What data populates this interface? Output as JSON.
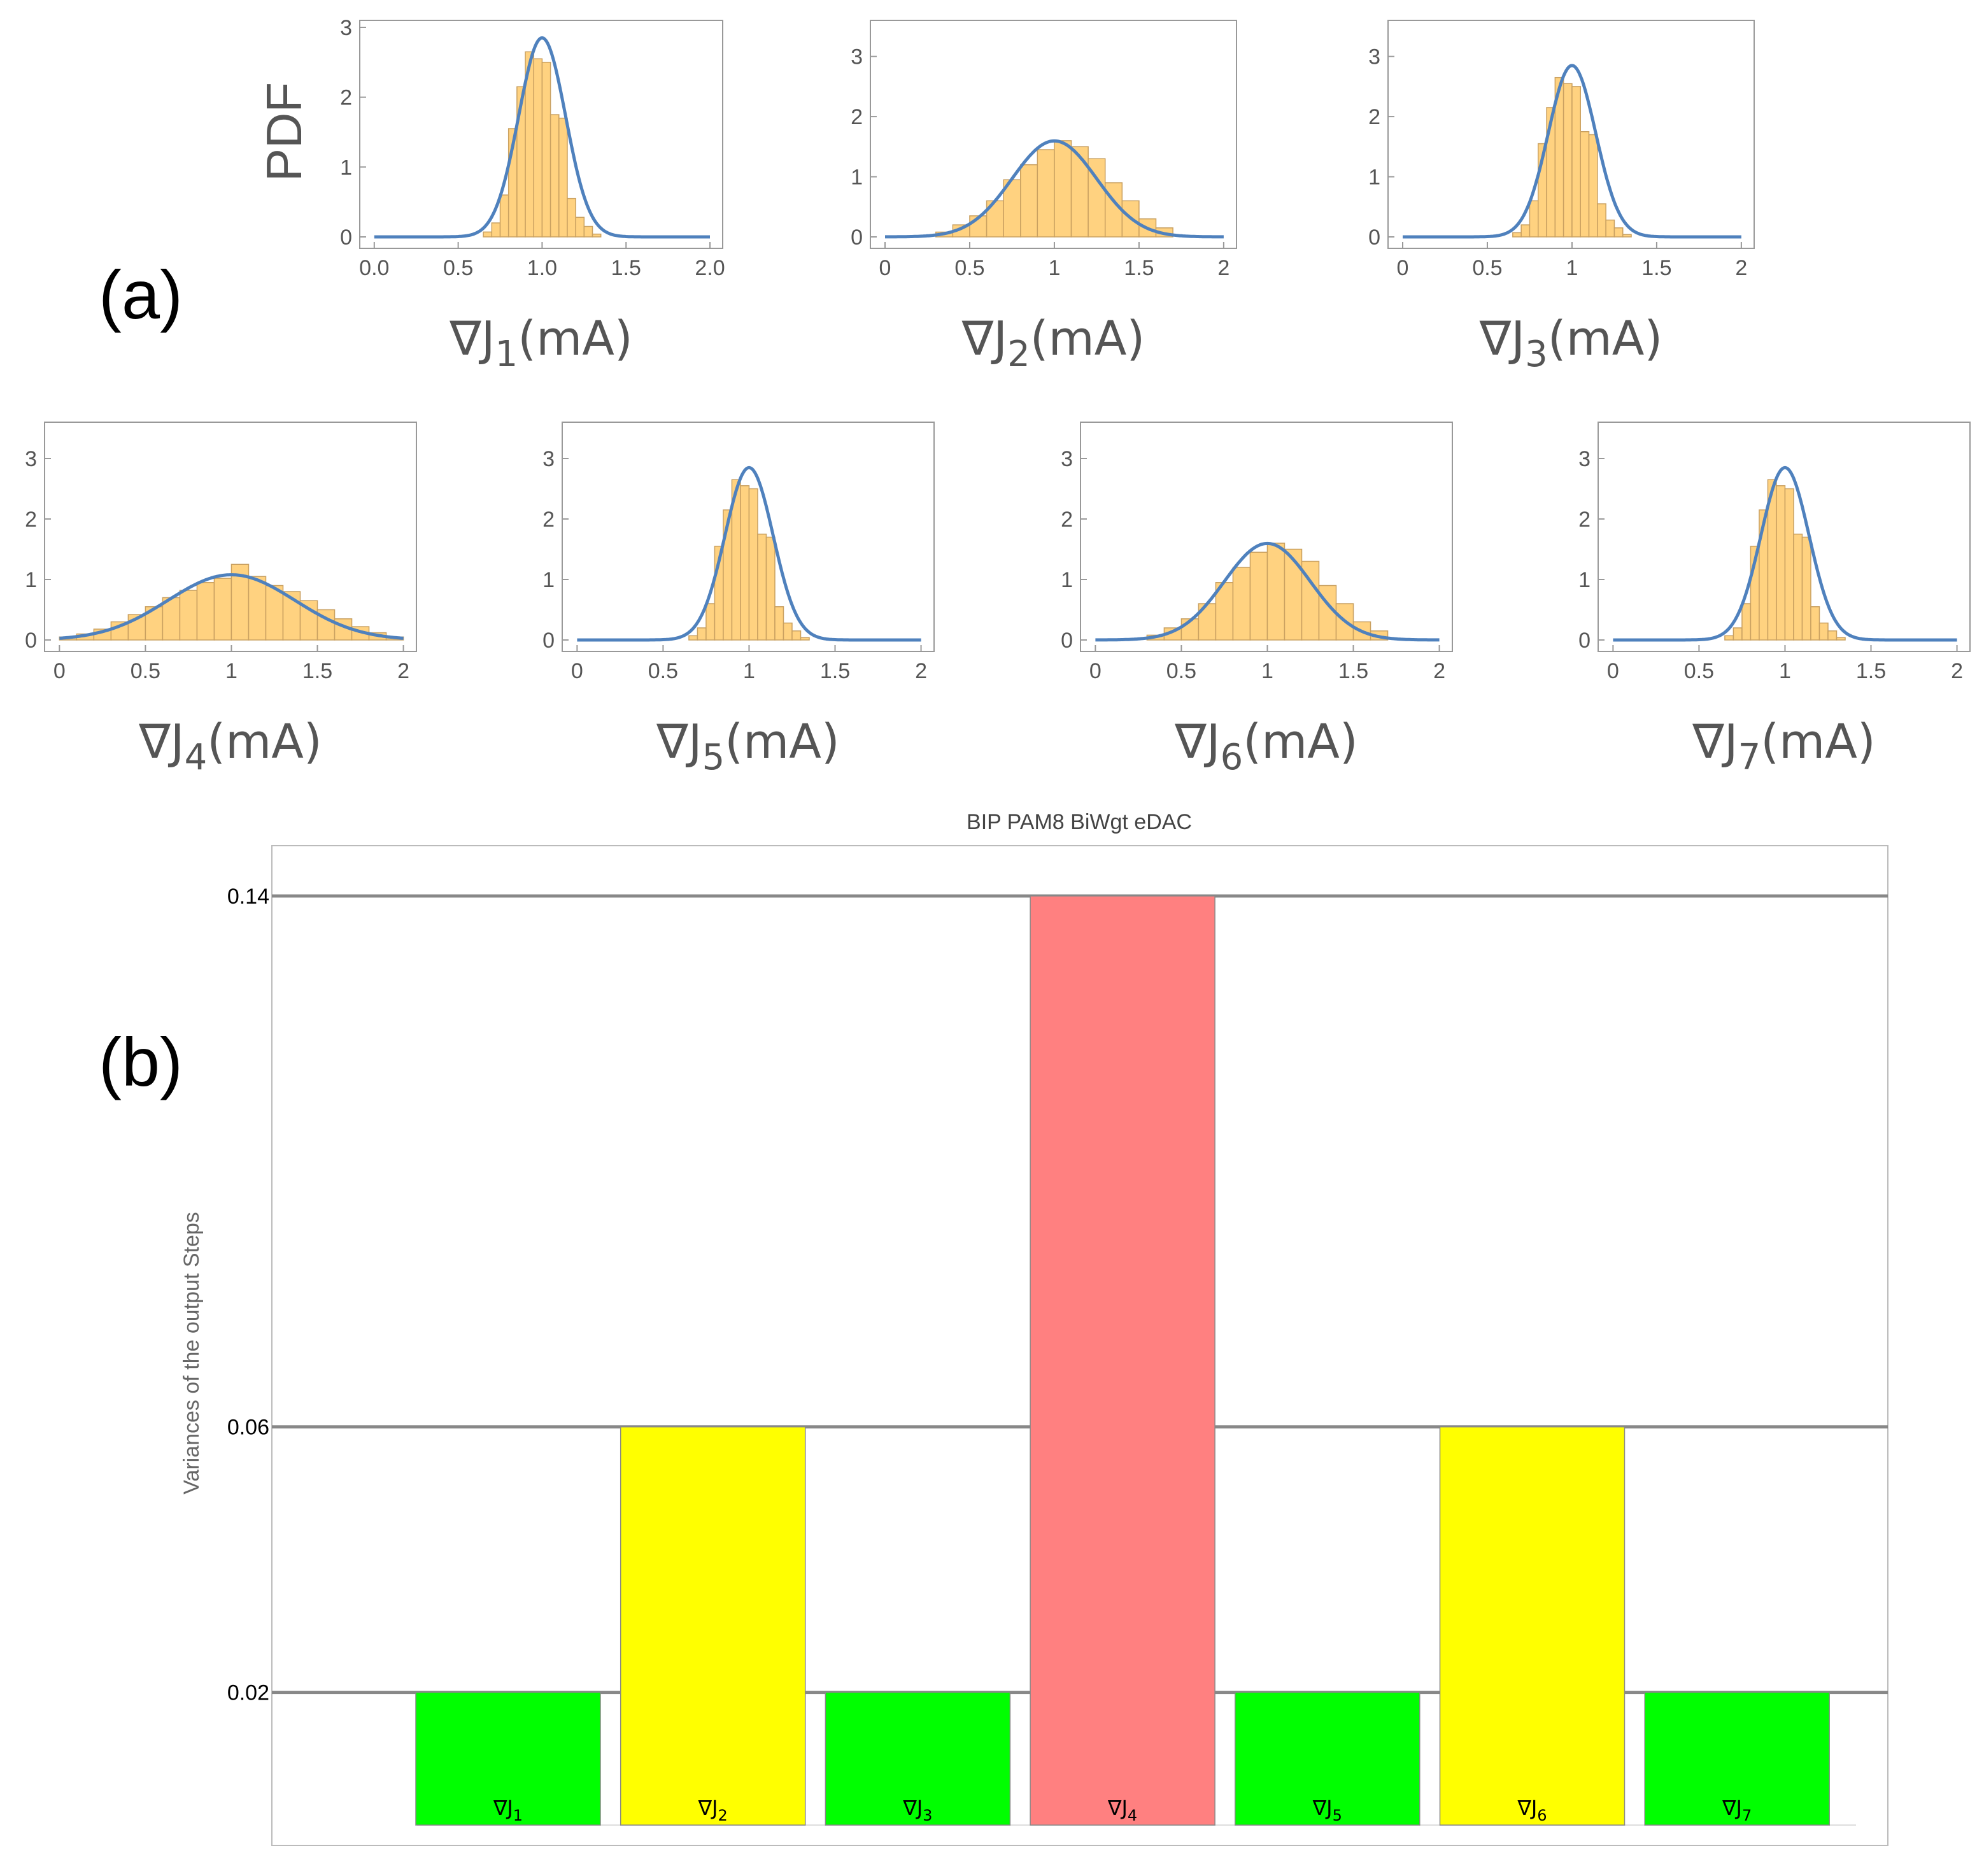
{
  "panels": {
    "a_label": "(a)",
    "b_label": "(b)"
  },
  "chart_data": [
    {
      "type": "histogram",
      "id": "J1",
      "xlabel": "∇J",
      "xsub": "1",
      "xunit": "(mA)",
      "ylabel": "PDF",
      "xlim": [
        0,
        2
      ],
      "ylim": [
        0,
        3.1
      ],
      "xticks": [
        "0.0",
        "0.5",
        "1.0",
        "1.5",
        "2.0"
      ],
      "yticks": [
        "0",
        "1",
        "2",
        "3"
      ],
      "mean": 1.0,
      "sd": 0.14,
      "bin_edges": [
        0.65,
        0.7,
        0.75,
        0.8,
        0.85,
        0.9,
        0.95,
        1.0,
        1.05,
        1.1,
        1.15,
        1.2,
        1.25,
        1.3,
        1.35
      ],
      "bin_values": [
        0.07,
        0.2,
        0.6,
        1.55,
        2.15,
        2.65,
        2.55,
        2.5,
        1.75,
        1.7,
        0.55,
        0.28,
        0.15,
        0.04
      ]
    },
    {
      "type": "histogram",
      "id": "J2",
      "xlabel": "∇J",
      "xsub": "2",
      "xunit": "(mA)",
      "xlim": [
        0,
        2
      ],
      "ylim": [
        0,
        3.6
      ],
      "xticks": [
        "0",
        "0.5",
        "1",
        "1.5",
        "2"
      ],
      "yticks": [
        "0",
        "1",
        "2",
        "3"
      ],
      "mean": 1.0,
      "sd": 0.25,
      "bin_edges": [
        0.3,
        0.4,
        0.5,
        0.6,
        0.7,
        0.8,
        0.9,
        1.0,
        1.1,
        1.2,
        1.3,
        1.4,
        1.5,
        1.6,
        1.7
      ],
      "bin_values": [
        0.08,
        0.2,
        0.35,
        0.6,
        0.95,
        1.2,
        1.45,
        1.6,
        1.5,
        1.3,
        0.9,
        0.6,
        0.3,
        0.15
      ]
    },
    {
      "type": "histogram",
      "id": "J3",
      "xlabel": "∇J",
      "xsub": "3",
      "xunit": "(mA)",
      "xlim": [
        0,
        2
      ],
      "ylim": [
        0,
        3.6
      ],
      "xticks": [
        "0",
        "0.5",
        "1",
        "1.5",
        "2"
      ],
      "yticks": [
        "0",
        "1",
        "2",
        "3"
      ],
      "mean": 1.0,
      "sd": 0.14,
      "bin_edges": [
        0.65,
        0.7,
        0.75,
        0.8,
        0.85,
        0.9,
        0.95,
        1.0,
        1.05,
        1.1,
        1.15,
        1.2,
        1.25,
        1.3,
        1.35
      ],
      "bin_values": [
        0.07,
        0.2,
        0.6,
        1.55,
        2.15,
        2.65,
        2.55,
        2.5,
        1.75,
        1.7,
        0.55,
        0.28,
        0.15,
        0.04
      ]
    },
    {
      "type": "histogram",
      "id": "J4",
      "xlabel": "∇J",
      "xsub": "4",
      "xunit": "(mA)",
      "xlim": [
        0,
        2
      ],
      "ylim": [
        0,
        3.6
      ],
      "xticks": [
        "0",
        "0.5",
        "1",
        "1.5",
        "2"
      ],
      "yticks": [
        "0",
        "1",
        "2",
        "3"
      ],
      "mean": 1.0,
      "sd": 0.37,
      "bin_edges": [
        0.0,
        0.1,
        0.2,
        0.3,
        0.4,
        0.5,
        0.6,
        0.7,
        0.8,
        0.9,
        1.0,
        1.1,
        1.2,
        1.3,
        1.4,
        1.5,
        1.6,
        1.7,
        1.8,
        1.9,
        2.0
      ],
      "bin_values": [
        0.05,
        0.1,
        0.18,
        0.3,
        0.42,
        0.55,
        0.7,
        0.82,
        0.95,
        1.02,
        1.25,
        1.05,
        0.9,
        0.8,
        0.65,
        0.5,
        0.35,
        0.22,
        0.12,
        0.05
      ]
    },
    {
      "type": "histogram",
      "id": "J5",
      "xlabel": "∇J",
      "xsub": "5",
      "xunit": "(mA)",
      "xlim": [
        0,
        2
      ],
      "ylim": [
        0,
        3.6
      ],
      "xticks": [
        "0",
        "0.5",
        "1",
        "1.5",
        "2"
      ],
      "yticks": [
        "0",
        "1",
        "2",
        "3"
      ],
      "mean": 1.0,
      "sd": 0.14,
      "bin_edges": [
        0.65,
        0.7,
        0.75,
        0.8,
        0.85,
        0.9,
        0.95,
        1.0,
        1.05,
        1.1,
        1.15,
        1.2,
        1.25,
        1.3,
        1.35
      ],
      "bin_values": [
        0.07,
        0.2,
        0.6,
        1.55,
        2.15,
        2.65,
        2.55,
        2.5,
        1.75,
        1.7,
        0.55,
        0.28,
        0.15,
        0.04
      ]
    },
    {
      "type": "histogram",
      "id": "J6",
      "xlabel": "∇J",
      "xsub": "6",
      "xunit": "(mA)",
      "xlim": [
        0,
        2
      ],
      "ylim": [
        0,
        3.6
      ],
      "xticks": [
        "0",
        "0.5",
        "1",
        "1.5",
        "2"
      ],
      "yticks": [
        "0",
        "1",
        "2",
        "3"
      ],
      "mean": 1.0,
      "sd": 0.25,
      "bin_edges": [
        0.3,
        0.4,
        0.5,
        0.6,
        0.7,
        0.8,
        0.9,
        1.0,
        1.1,
        1.2,
        1.3,
        1.4,
        1.5,
        1.6,
        1.7
      ],
      "bin_values": [
        0.08,
        0.2,
        0.35,
        0.6,
        0.95,
        1.2,
        1.45,
        1.6,
        1.5,
        1.3,
        0.9,
        0.6,
        0.3,
        0.15
      ]
    },
    {
      "type": "histogram",
      "id": "J7",
      "xlabel": "∇J",
      "xsub": "7",
      "xunit": "(mA)",
      "xlim": [
        0,
        2
      ],
      "ylim": [
        0,
        3.6
      ],
      "xticks": [
        "0",
        "0.5",
        "1",
        "1.5",
        "2"
      ],
      "yticks": [
        "0",
        "1",
        "2",
        "3"
      ],
      "mean": 1.0,
      "sd": 0.14,
      "bin_edges": [
        0.65,
        0.7,
        0.75,
        0.8,
        0.85,
        0.9,
        0.95,
        1.0,
        1.05,
        1.1,
        1.15,
        1.2,
        1.25,
        1.3,
        1.35
      ],
      "bin_values": [
        0.07,
        0.2,
        0.6,
        1.55,
        2.15,
        2.65,
        2.55,
        2.5,
        1.75,
        1.7,
        0.55,
        0.28,
        0.15,
        0.04
      ]
    },
    {
      "type": "bar",
      "id": "variances",
      "title": "BIP PAM8 BiWgt eDAC",
      "ylabel": "Variances of the output Steps",
      "categories": [
        "∇J1",
        "∇J2",
        "∇J3",
        "∇J4",
        "∇J5",
        "∇J6",
        "∇J7"
      ],
      "category_base": "∇J",
      "category_subs": [
        "1",
        "2",
        "3",
        "4",
        "5",
        "6",
        "7"
      ],
      "values": [
        0.02,
        0.06,
        0.02,
        0.14,
        0.02,
        0.06,
        0.02
      ],
      "colors": [
        "#00ff00",
        "#ffff00",
        "#00ff00",
        "#ff8080",
        "#00ff00",
        "#ffff00",
        "#00ff00"
      ],
      "gridlines": [
        0.02,
        0.06,
        0.14
      ],
      "ytick_labels": [
        "0.02",
        "0.06",
        "0.14"
      ],
      "ylim": [
        0,
        0.144
      ]
    }
  ],
  "colors": {
    "hist_fill": "#ffd280",
    "hist_edge": "#c9a060",
    "curve": "#4f81bd",
    "frame": "#999999",
    "grid": "#888888"
  }
}
